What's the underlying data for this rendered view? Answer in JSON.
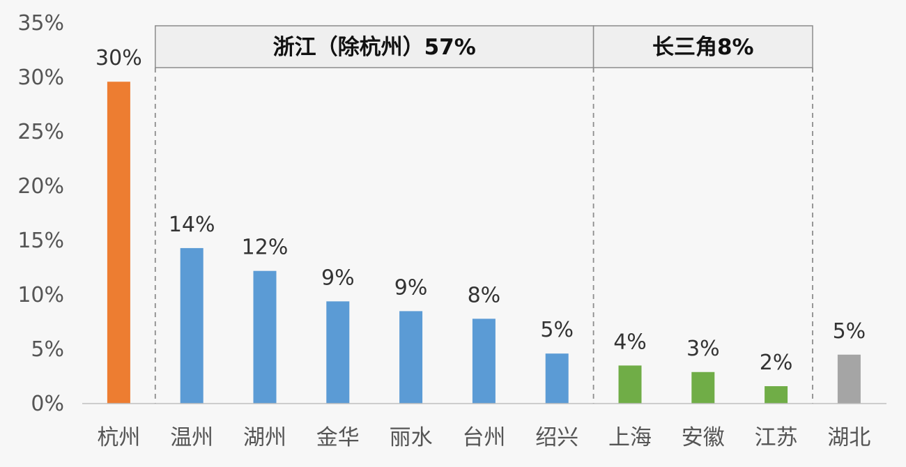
{
  "chart_data": {
    "type": "bar",
    "ylim": [
      0,
      35
    ],
    "yticks": [
      0,
      5,
      10,
      15,
      20,
      25,
      30,
      35
    ],
    "ytick_labels": [
      "0%",
      "5%",
      "10%",
      "15%",
      "20%",
      "25%",
      "30%",
      "35%"
    ],
    "categories": [
      "杭州",
      "温州",
      "湖州",
      "金华",
      "丽水",
      "台州",
      "绍兴",
      "上海",
      "安徽",
      "江苏",
      "湖北"
    ],
    "values": [
      29.6,
      14.3,
      12.2,
      9.4,
      8.5,
      7.8,
      4.6,
      3.5,
      2.9,
      1.6,
      4.5
    ],
    "data_labels": [
      "30%",
      "14%",
      "12%",
      "9%",
      "9%",
      "8%",
      "5%",
      "4%",
      "3%",
      "2%",
      "5%"
    ],
    "colors": [
      "#ED7D31",
      "#5B9BD5",
      "#5B9BD5",
      "#5B9BD5",
      "#5B9BD5",
      "#5B9BD5",
      "#5B9BD5",
      "#70AD47",
      "#70AD47",
      "#70AD47",
      "#A5A5A5"
    ],
    "groups": [
      {
        "label": "浙江（除杭州）57%",
        "start": 1,
        "end": 6
      },
      {
        "label": "长三角8%",
        "start": 7,
        "end": 9
      }
    ],
    "grid": false,
    "legend": "none"
  }
}
